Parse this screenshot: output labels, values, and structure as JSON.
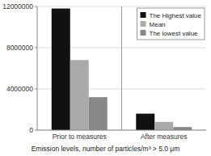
{
  "chart_data": {
    "type": "bar",
    "categories": [
      "Prior to measures",
      "After measures"
    ],
    "series": [
      {
        "name": "The Highest value",
        "color": "#111111",
        "values": [
          11800000,
          1600000
        ]
      },
      {
        "name": "Mean",
        "color": "#aaaaaa",
        "values": [
          6800000,
          800000
        ]
      },
      {
        "name": "The lowest value",
        "color": "#888888",
        "values": [
          3200000,
          300000
        ]
      }
    ],
    "xlabel": "Emission levels, number of particles/m³ > 5.0 μm",
    "ylim": [
      0,
      12000000
    ],
    "yticks": [
      0,
      4000000,
      8000000,
      12000000
    ],
    "grid": true,
    "legend": "upper right"
  }
}
